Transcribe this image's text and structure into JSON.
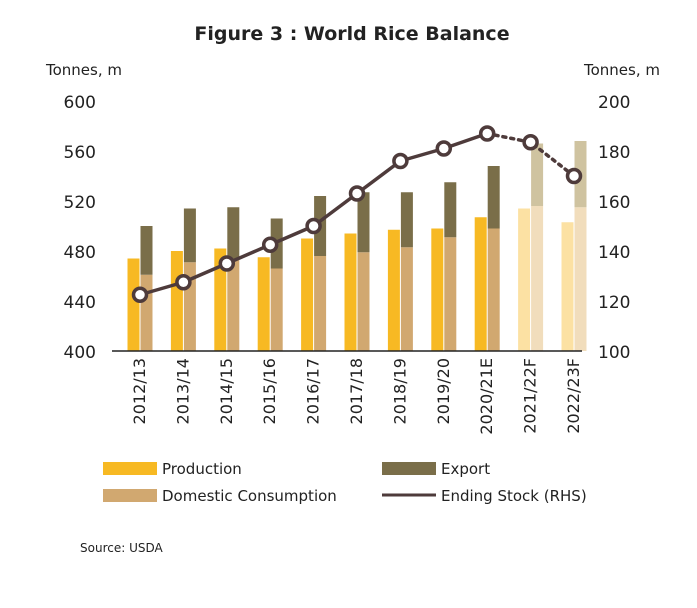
{
  "chart_data": {
    "type": "bar",
    "title": "Figure 3 : World Rice Balance",
    "ylabel_left": "Tonnes, m",
    "ylabel_right": "Tonnes, m",
    "ylim_left": [
      400,
      600
    ],
    "ylim_right": [
      100,
      200
    ],
    "yticks_left": [
      "400",
      "440",
      "480",
      "520",
      "560",
      "600"
    ],
    "yticks_right": [
      "100",
      "120",
      "140",
      "160",
      "180",
      "200"
    ],
    "categories": [
      "2012/13",
      "2013/14",
      "2014/15",
      "2015/16",
      "2016/17",
      "2017/18",
      "2018/19",
      "2019/20",
      "2020/21E",
      "2021/22F",
      "2022/23F"
    ],
    "forecast_categories": [
      "2021/22F",
      "2022/23F"
    ],
    "series": [
      {
        "name": "Production",
        "type": "bar",
        "axis": "left",
        "color": "#F7B923",
        "forecast_color": "#FCE1A3",
        "values": [
          474,
          480,
          482,
          475,
          490,
          494,
          497,
          498,
          507,
          514,
          503
        ]
      },
      {
        "name": "Domestic Consumption",
        "type": "stacked-bar",
        "axis": "left",
        "color": "#D1A870",
        "forecast_color": "#F1DDBC",
        "values": [
          461,
          471,
          474,
          466,
          476,
          479,
          483,
          491,
          498,
          516,
          515
        ]
      },
      {
        "name": "Export",
        "type": "stacked-bar",
        "axis": "left",
        "color": "#7A6E49",
        "forecast_color": "#CFC3A0",
        "values": [
          39,
          43,
          41,
          40,
          48,
          48,
          44,
          44,
          50,
          50,
          53
        ]
      },
      {
        "name": "Ending Stock (RHS)",
        "type": "line",
        "axis": "right",
        "color": "#4E3B3B",
        "values": [
          122.5,
          127.5,
          135,
          142.5,
          150,
          163,
          176,
          181,
          187,
          183.5,
          170
        ]
      }
    ],
    "grid": false,
    "legend": "bottom"
  },
  "footer": {
    "source": "Source: USDA"
  }
}
